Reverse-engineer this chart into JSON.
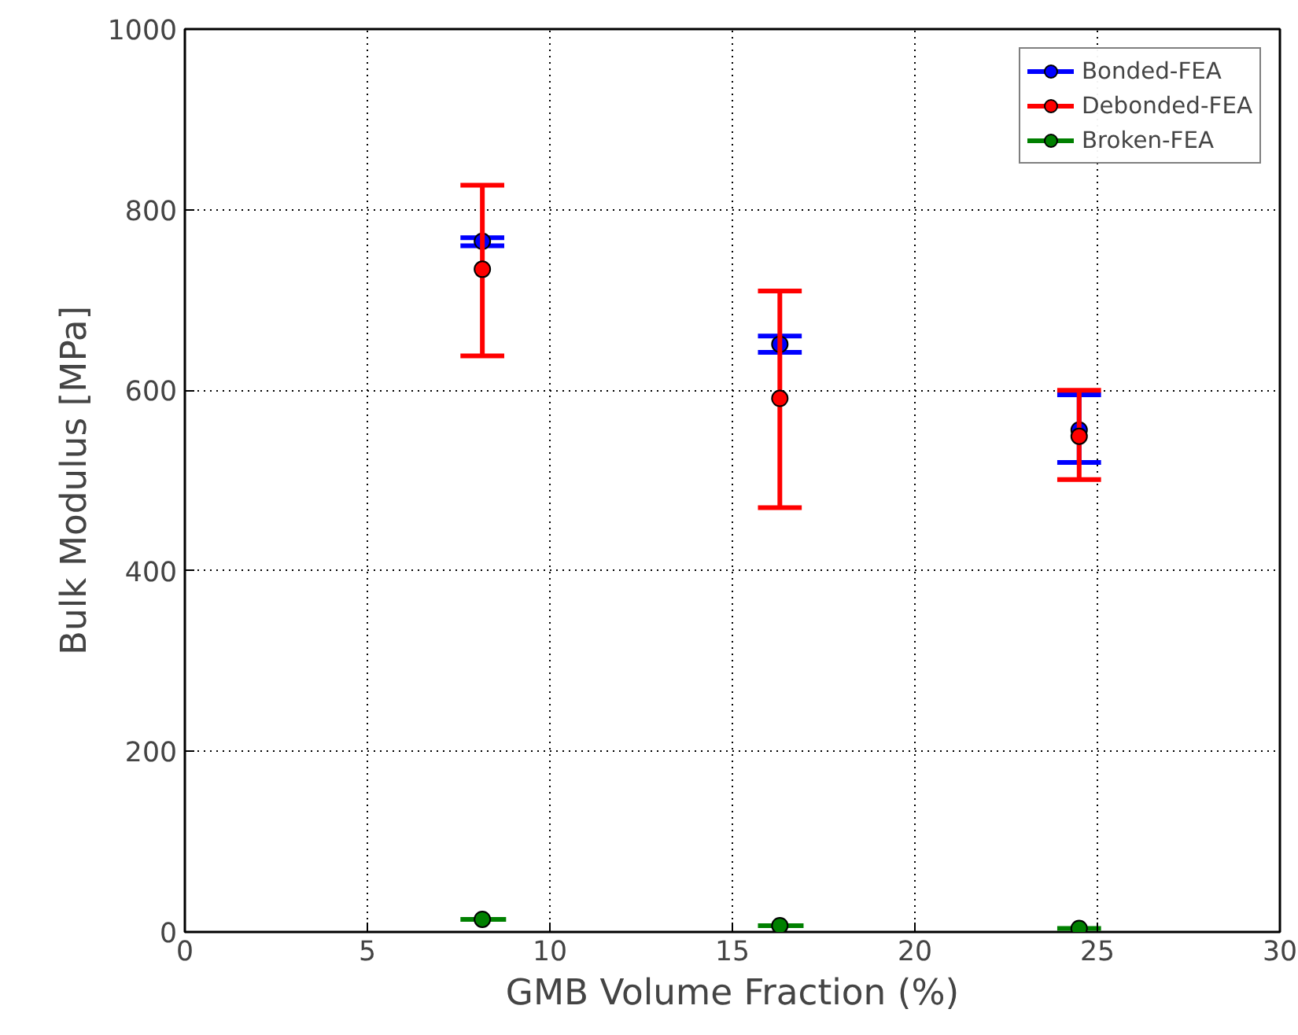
{
  "chart_data": {
    "type": "scatter",
    "xlabel": "GMB Volume Fraction (%)",
    "ylabel": "Bulk Modulus [MPa]",
    "xlim": [
      0,
      30
    ],
    "ylim": [
      0,
      1000
    ],
    "xticks": [
      0,
      5,
      10,
      15,
      20,
      25,
      30
    ],
    "yticks": [
      0,
      200,
      400,
      600,
      800,
      1000
    ],
    "grid": true,
    "legend": "top right",
    "marker": "circle",
    "series": [
      {
        "name": "Bonded-FEA",
        "color": "#0000ff",
        "x": [
          8.15,
          16.3,
          24.5
        ],
        "values": [
          765,
          651,
          556
        ],
        "errors": [
          [
            760,
            769
          ],
          [
            642,
            660
          ],
          [
            520,
            595
          ]
        ]
      },
      {
        "name": "Debonded-FEA",
        "color": "#ff0000",
        "x": [
          8.15,
          16.3,
          24.5
        ],
        "values": [
          734,
          591,
          549
        ],
        "errors": [
          [
            638,
            827
          ],
          [
            470,
            710
          ],
          [
            501,
            600
          ]
        ]
      },
      {
        "name": "Broken-FEA",
        "color": "#008000",
        "x": [
          8.15,
          16.3,
          24.5
        ],
        "values": [
          14,
          7,
          4
        ],
        "xerrors": [
          [
            7.55,
            8.8
          ],
          [
            15.7,
            16.95
          ],
          [
            23.9,
            25.1
          ]
        ]
      }
    ]
  }
}
